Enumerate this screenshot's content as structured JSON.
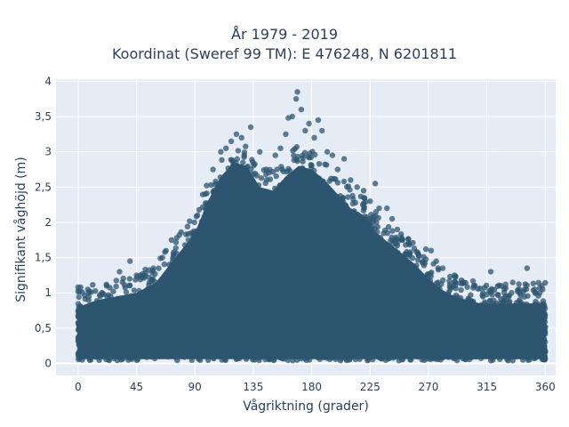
{
  "chart_data": {
    "type": "scatter",
    "title_lines": [
      "År 1979 - 2019",
      "Koordinat (Sweref 99 TM): E 476248, N 6201811"
    ],
    "xlabel": "Vågriktning (grader)",
    "ylabel": "Signifikant våghöjd (m)",
    "xlim": [
      -17,
      368
    ],
    "ylim": [
      -0.17,
      4.03
    ],
    "x_ticks": [
      0,
      45,
      90,
      135,
      180,
      225,
      270,
      315,
      360
    ],
    "x_tick_labels": [
      "0",
      "45",
      "90",
      "135",
      "180",
      "225",
      "270",
      "315",
      "360"
    ],
    "y_ticks": [
      0,
      0.5,
      1,
      1.5,
      2,
      2.5,
      3,
      3.5,
      4
    ],
    "y_tick_labels": [
      "0",
      "0,5",
      "1",
      "1,5",
      "2",
      "2,5",
      "3",
      "3,5",
      "4"
    ],
    "grid": true,
    "marker_color": "#2e5570",
    "marker_opacity": 0.75,
    "envelope": {
      "x": [
        0,
        15,
        30,
        45,
        60,
        75,
        90,
        100,
        110,
        120,
        130,
        140,
        150,
        160,
        170,
        180,
        190,
        200,
        210,
        220,
        230,
        240,
        250,
        260,
        270,
        280,
        290,
        300,
        310,
        320,
        330,
        340,
        350,
        360
      ],
      "y": [
        0.8,
        0.9,
        0.95,
        1.0,
        1.15,
        1.5,
        1.85,
        2.3,
        2.65,
        2.85,
        2.8,
        2.5,
        2.45,
        2.65,
        2.8,
        2.75,
        2.6,
        2.4,
        2.2,
        2.1,
        1.85,
        1.7,
        1.55,
        1.4,
        1.2,
        1.05,
        0.95,
        0.9,
        0.85,
        0.85,
        0.85,
        0.85,
        0.85,
        0.85
      ]
    },
    "outliers": [
      [
        0,
        1.08
      ],
      [
        8,
        1.0
      ],
      [
        22,
        1.1
      ],
      [
        32,
        1.3
      ],
      [
        40,
        1.45
      ],
      [
        48,
        1.25
      ],
      [
        58,
        1.35
      ],
      [
        65,
        1.5
      ],
      [
        72,
        1.75
      ],
      [
        78,
        1.82
      ],
      [
        85,
        1.75
      ],
      [
        92,
        2.1
      ],
      [
        98,
        2.4
      ],
      [
        104,
        2.75
      ],
      [
        110,
        3.0
      ],
      [
        114,
        3.05
      ],
      [
        118,
        3.15
      ],
      [
        122,
        3.25
      ],
      [
        126,
        3.2
      ],
      [
        128,
        2.95
      ],
      [
        133,
        3.35
      ],
      [
        140,
        3.0
      ],
      [
        145,
        2.75
      ],
      [
        152,
        2.95
      ],
      [
        156,
        3.05
      ],
      [
        160,
        3.25
      ],
      [
        162,
        3.48
      ],
      [
        165,
        3.5
      ],
      [
        168,
        3.75
      ],
      [
        169,
        3.85
      ],
      [
        172,
        3.6
      ],
      [
        175,
        3.3
      ],
      [
        178,
        3.4
      ],
      [
        182,
        3.2
      ],
      [
        185,
        3.45
      ],
      [
        188,
        3.3
      ],
      [
        192,
        3.0
      ],
      [
        196,
        2.95
      ],
      [
        200,
        2.75
      ],
      [
        205,
        2.9
      ],
      [
        210,
        2.6
      ],
      [
        215,
        2.5
      ],
      [
        220,
        2.45
      ],
      [
        225,
        2.3
      ],
      [
        229,
        2.55
      ],
      [
        232,
        2.2
      ],
      [
        238,
        2.2
      ],
      [
        242,
        2.05
      ],
      [
        246,
        1.9
      ],
      [
        250,
        1.75
      ],
      [
        255,
        1.7
      ],
      [
        262,
        1.55
      ],
      [
        268,
        1.62
      ],
      [
        272,
        1.6
      ],
      [
        276,
        1.45
      ],
      [
        281,
        1.35
      ],
      [
        290,
        1.25
      ],
      [
        297,
        1.15
      ],
      [
        305,
        1.1
      ],
      [
        312,
        1.0
      ],
      [
        318,
        1.3
      ],
      [
        326,
        1.1
      ],
      [
        334,
        1.0
      ],
      [
        340,
        1.05
      ],
      [
        346,
        1.35
      ],
      [
        352,
        1.05
      ],
      [
        358,
        1.05
      ]
    ]
  }
}
